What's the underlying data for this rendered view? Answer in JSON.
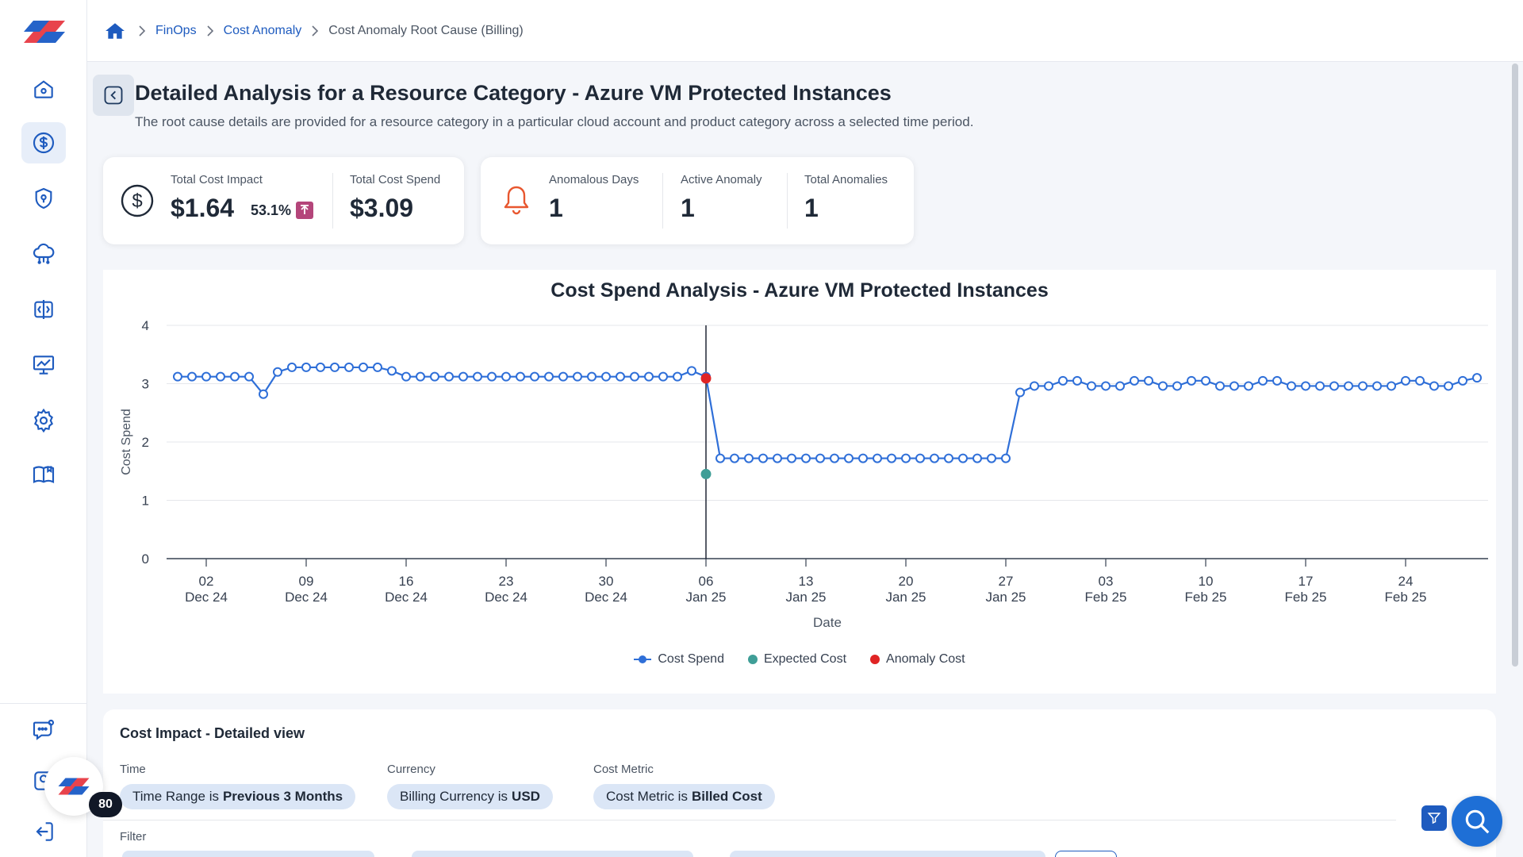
{
  "breadcrumb": {
    "items": [
      "FinOps",
      "Cost Anomaly"
    ],
    "current": "Cost Anomaly Root Cause (Billing)"
  },
  "header": {
    "title": "Detailed Analysis for a Resource Category - Azure VM Protected Instances",
    "subtitle": "The root cause details are provided for a resource category in a particular cloud account and product category across a selected time period."
  },
  "kpis": {
    "total_cost_impact": {
      "label": "Total Cost Impact",
      "value": "$1.64",
      "change": "53.1%"
    },
    "total_cost_spend": {
      "label": "Total Cost Spend",
      "value": "$3.09"
    },
    "anomalous_days": {
      "label": "Anomalous Days",
      "value": "1"
    },
    "active_anomaly": {
      "label": "Active Anomaly",
      "value": "1"
    },
    "total_anomalies": {
      "label": "Total Anomalies",
      "value": "1"
    }
  },
  "chart_data": {
    "type": "line",
    "title": "Cost Spend Analysis - Azure VM Protected Instances",
    "xlabel": "Date",
    "ylabel": "Cost Spend",
    "ylim": [
      0,
      4
    ],
    "yticks": [
      "0",
      "1",
      "2",
      "3",
      "4"
    ],
    "x_start": "2024-11-30",
    "xticks": [
      {
        "day": "02",
        "month": "Dec 24"
      },
      {
        "day": "09",
        "month": "Dec 24"
      },
      {
        "day": "16",
        "month": "Dec 24"
      },
      {
        "day": "23",
        "month": "Dec 24"
      },
      {
        "day": "30",
        "month": "Dec 24"
      },
      {
        "day": "06",
        "month": "Jan 25"
      },
      {
        "day": "13",
        "month": "Jan 25"
      },
      {
        "day": "20",
        "month": "Jan 25"
      },
      {
        "day": "27",
        "month": "Jan 25"
      },
      {
        "day": "03",
        "month": "Feb 25"
      },
      {
        "day": "10",
        "month": "Feb 25"
      },
      {
        "day": "17",
        "month": "Feb 25"
      },
      {
        "day": "24",
        "month": "Feb 25"
      }
    ],
    "grid": true,
    "legend_position": "bottom",
    "series": [
      {
        "name": "Cost Spend",
        "color": "#2f6fd8",
        "values": [
          3.12,
          3.12,
          3.12,
          3.12,
          3.12,
          3.12,
          2.82,
          3.2,
          3.28,
          3.28,
          3.28,
          3.28,
          3.28,
          3.28,
          3.28,
          3.22,
          3.12,
          3.12,
          3.12,
          3.12,
          3.12,
          3.12,
          3.12,
          3.12,
          3.12,
          3.12,
          3.12,
          3.12,
          3.12,
          3.12,
          3.12,
          3.12,
          3.12,
          3.12,
          3.12,
          3.12,
          3.22,
          3.12,
          1.72,
          1.72,
          1.72,
          1.72,
          1.72,
          1.72,
          1.72,
          1.72,
          1.72,
          1.72,
          1.72,
          1.72,
          1.72,
          1.72,
          1.72,
          1.72,
          1.72,
          1.72,
          1.72,
          1.72,
          1.72,
          2.85,
          2.96,
          2.96,
          3.05,
          3.05,
          2.96,
          2.96,
          2.96,
          3.05,
          3.05,
          2.96,
          2.96,
          3.05,
          3.05,
          2.96,
          2.96,
          2.96,
          3.05,
          3.05,
          2.96,
          2.96,
          2.96,
          2.96,
          2.96,
          2.96,
          2.96,
          2.96,
          3.05,
          3.05,
          2.96,
          2.96,
          3.05,
          3.1
        ]
      },
      {
        "name": "Expected Cost",
        "color": "#3f9e97",
        "points": [
          {
            "x": "2025-01-06",
            "y": 1.45
          }
        ]
      },
      {
        "name": "Anomaly Cost",
        "color": "#e02424",
        "points": [
          {
            "x": "2025-01-06",
            "y": 3.09
          }
        ]
      }
    ],
    "marker_line_date": "2025-01-06"
  },
  "detail": {
    "title": "Cost Impact - Detailed view",
    "time_label": "Time",
    "time_chip_prefix": "Time Range is",
    "time_chip_value": "Previous 3 Months",
    "currency_label": "Currency",
    "currency_chip_prefix": "Billing Currency is",
    "currency_chip_value": "USD",
    "metric_label": "Cost Metric",
    "metric_chip_prefix": "Cost Metric is",
    "metric_chip_value": "Billed Cost",
    "filter_label": "Filter"
  },
  "notification_count": "80",
  "colors": {
    "accent": "#1e5bbf",
    "anomaly": "#e02424",
    "expected": "#3f9e97",
    "bell": "#e8572f"
  }
}
